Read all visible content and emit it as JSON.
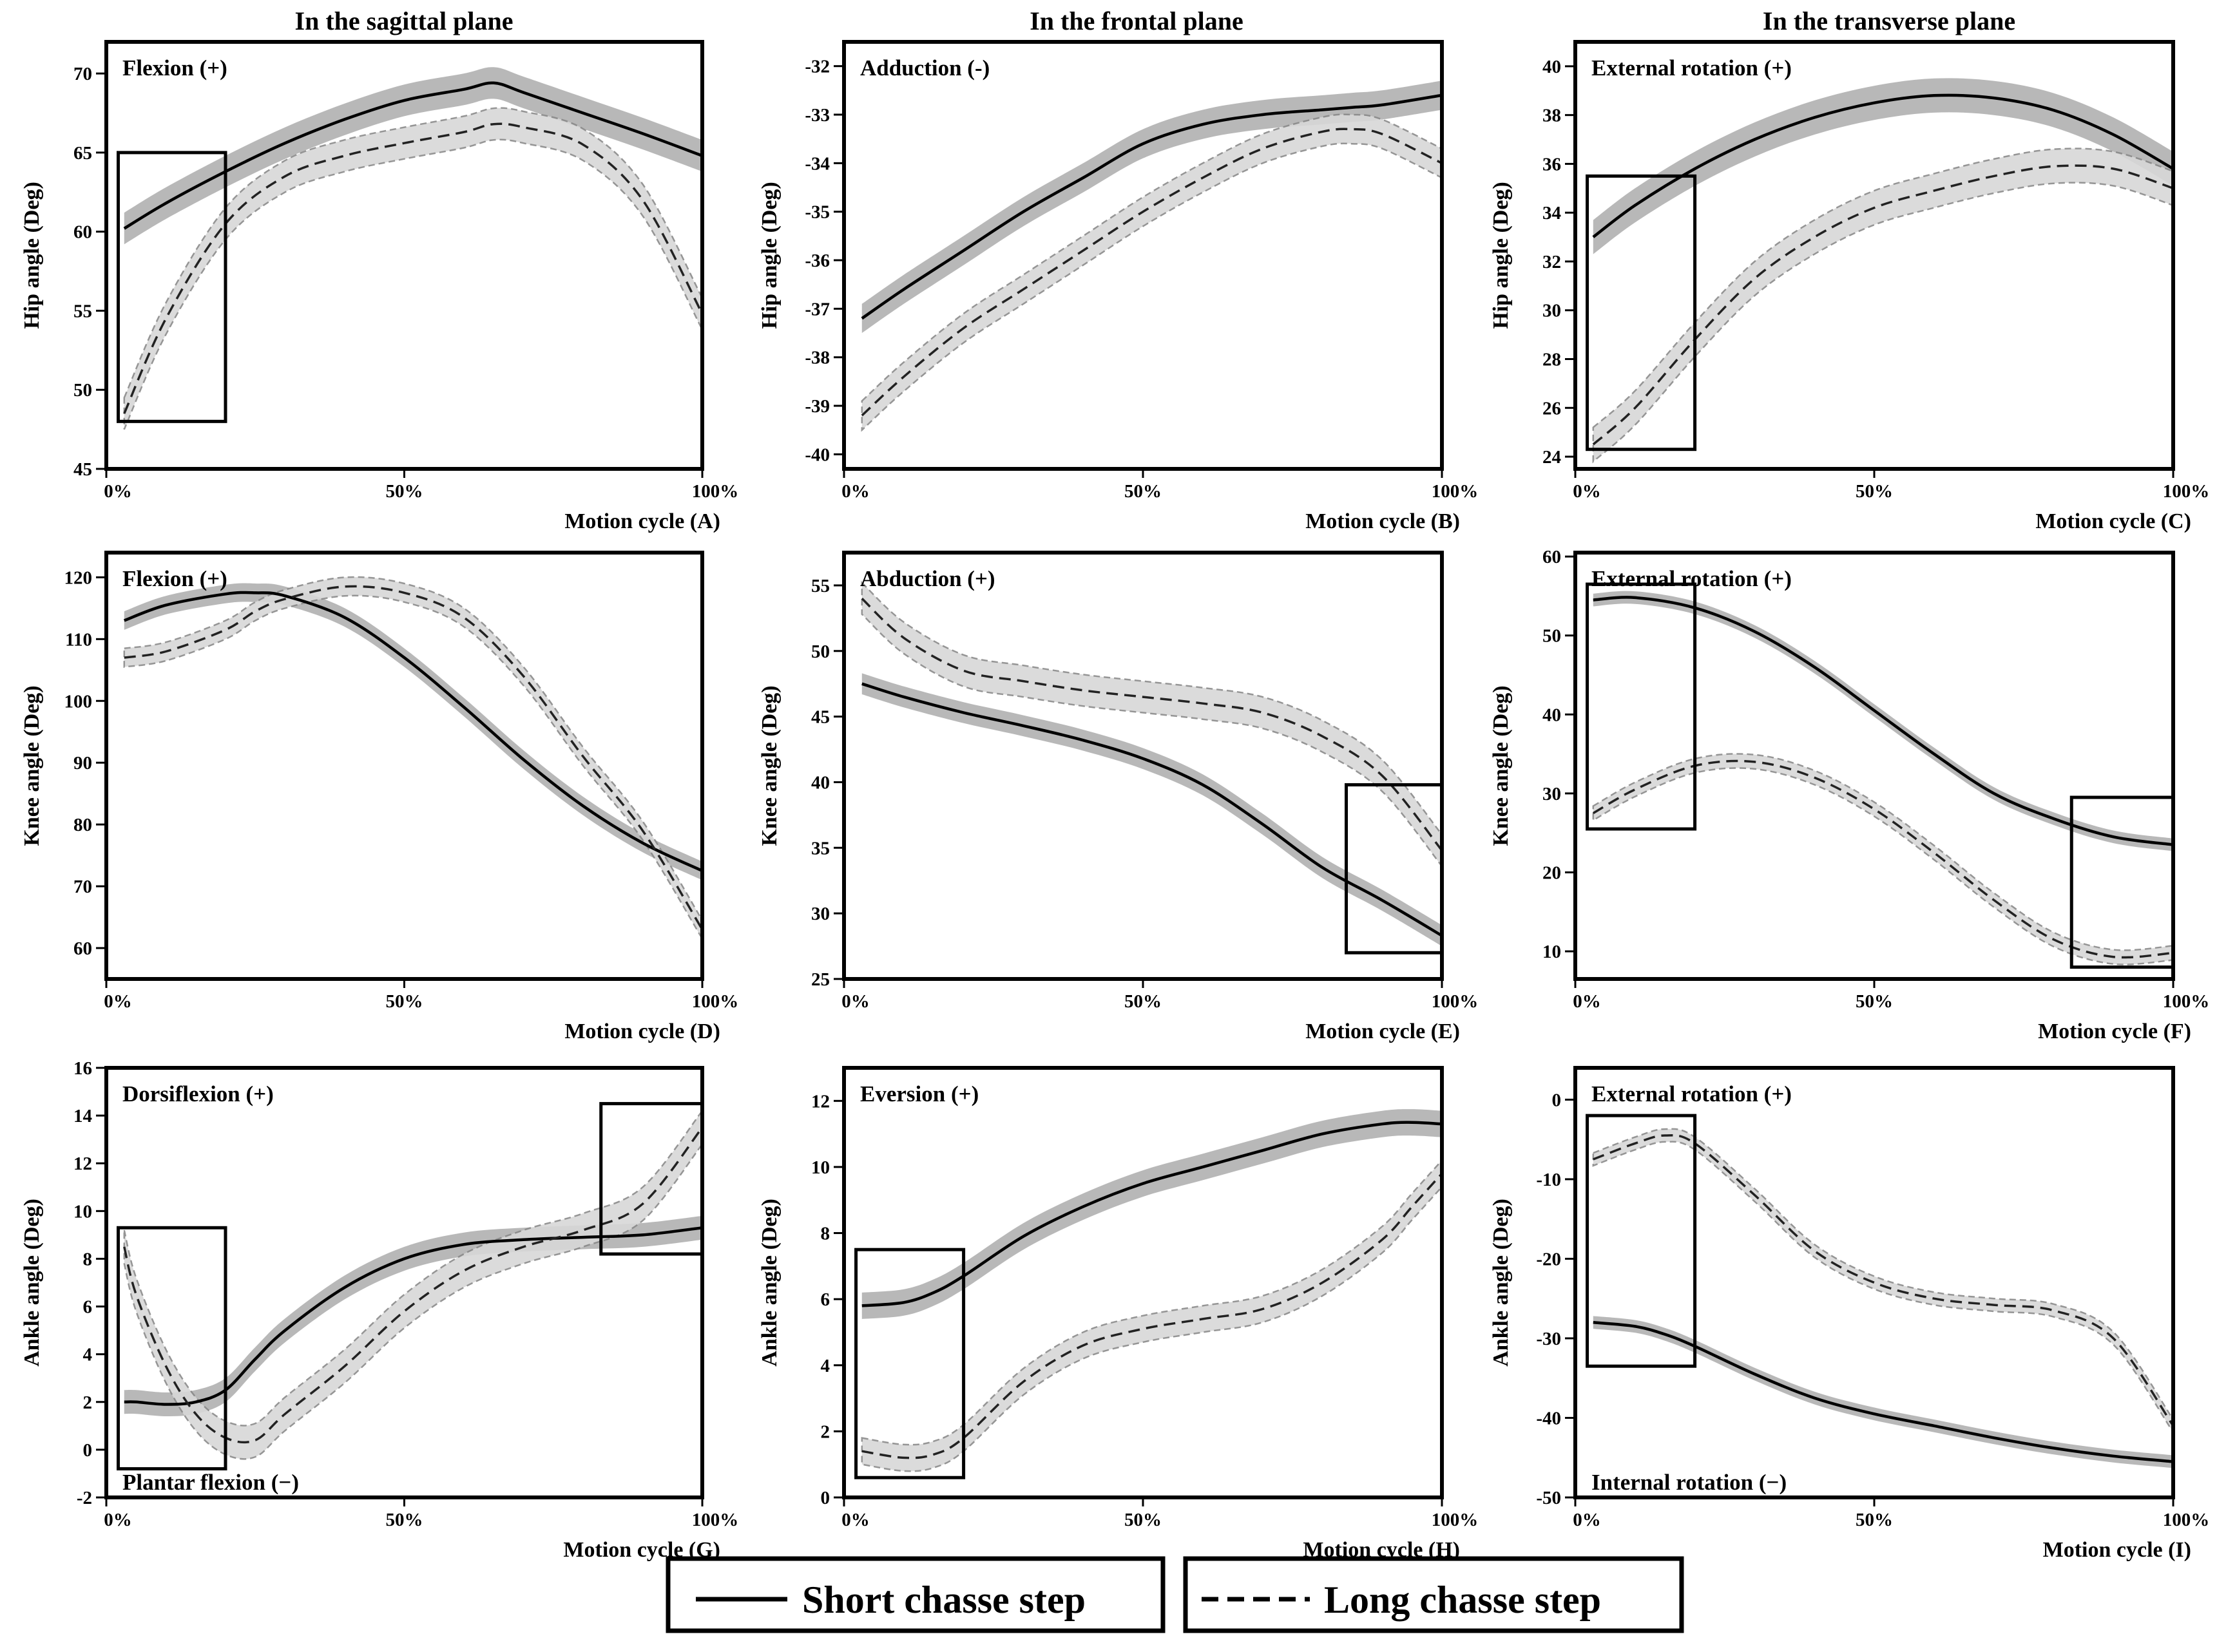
{
  "figure": {
    "column_titles": [
      "In the sagittal plane",
      "In the frontal plane",
      "In the transverse plane"
    ],
    "x_tick_labels": [
      "0%",
      "50%",
      "100%"
    ],
    "legend": {
      "short_label": "Short chasse step",
      "long_label": "Long chasse step"
    }
  },
  "chart_data": [
    {
      "type": "line",
      "xlabel": "Motion cycle (A)",
      "ylabel": "Hip angle (Deg)",
      "annotation_top": "Flexion (+)",
      "annotation_bottom": "",
      "ylim": [
        45,
        72
      ],
      "y_ticks": [
        45,
        50,
        55,
        60,
        65,
        70
      ],
      "x": [
        3,
        10,
        20,
        30,
        40,
        50,
        60,
        65,
        70,
        80,
        90,
        100
      ],
      "series": [
        {
          "name": "Short chasse step",
          "values": [
            60.2,
            61.8,
            63.8,
            65.6,
            67.1,
            68.3,
            69.0,
            69.4,
            68.8,
            67.5,
            66.2,
            64.8
          ],
          "band": 1.0
        },
        {
          "name": "Long chasse step",
          "values": [
            48.5,
            54.5,
            60.5,
            63.5,
            64.8,
            65.6,
            66.3,
            66.8,
            66.6,
            65.5,
            62.0,
            54.8
          ],
          "band": 1.0
        }
      ],
      "highlights": [
        [
          2,
          20,
          48,
          65
        ]
      ]
    },
    {
      "type": "line",
      "xlabel": "Motion cycle (B)",
      "ylabel": "Hip angle (Deg)",
      "annotation_top": "Adduction (-)",
      "annotation_bottom": "",
      "ylim": [
        -40.3,
        -31.5
      ],
      "y_ticks": [
        -40,
        -39,
        -38,
        -37,
        -36,
        -35,
        -34,
        -33,
        -32
      ],
      "x": [
        3,
        10,
        20,
        30,
        40,
        50,
        60,
        70,
        80,
        85,
        90,
        100
      ],
      "series": [
        {
          "name": "Short chasse step",
          "values": [
            -37.2,
            -36.6,
            -35.8,
            -35.0,
            -34.3,
            -33.6,
            -33.2,
            -33.0,
            -32.9,
            -32.85,
            -32.8,
            -32.6
          ],
          "band": 0.3
        },
        {
          "name": "Long chasse step",
          "values": [
            -39.2,
            -38.4,
            -37.4,
            -36.6,
            -35.8,
            -35.0,
            -34.3,
            -33.7,
            -33.35,
            -33.3,
            -33.4,
            -34.0
          ],
          "band": 0.3
        }
      ],
      "highlights": []
    },
    {
      "type": "line",
      "xlabel": "Motion cycle (C)",
      "ylabel": "Hip angle (Deg)",
      "annotation_top": "External rotation (+)",
      "annotation_bottom": "",
      "ylim": [
        23.5,
        41
      ],
      "y_ticks": [
        24,
        26,
        28,
        30,
        32,
        34,
        36,
        38,
        40
      ],
      "x": [
        3,
        10,
        20,
        30,
        40,
        50,
        60,
        70,
        80,
        90,
        100
      ],
      "series": [
        {
          "name": "Short chasse step",
          "values": [
            33.0,
            34.3,
            35.8,
            37.0,
            37.9,
            38.5,
            38.8,
            38.7,
            38.2,
            37.2,
            35.8
          ],
          "band": 0.7
        },
        {
          "name": "Long chasse step",
          "values": [
            24.5,
            26.0,
            28.8,
            31.3,
            33.0,
            34.2,
            34.9,
            35.5,
            35.9,
            35.8,
            35.0
          ],
          "band": 0.7
        }
      ],
      "highlights": [
        [
          2,
          20,
          24.3,
          35.5
        ]
      ]
    },
    {
      "type": "line",
      "xlabel": "Motion cycle (D)",
      "ylabel": "Knee angle (Deg)",
      "annotation_top": "Flexion (+)",
      "annotation_bottom": "",
      "ylim": [
        55,
        124
      ],
      "y_ticks": [
        60,
        70,
        80,
        90,
        100,
        110,
        120
      ],
      "x": [
        3,
        10,
        20,
        25,
        30,
        40,
        50,
        60,
        70,
        80,
        90,
        100
      ],
      "series": [
        {
          "name": "Short chasse step",
          "values": [
            113,
            115.5,
            117.3,
            117.5,
            117.0,
            113.5,
            107,
            99,
            90.5,
            83,
            77,
            72.5
          ],
          "band": 1.5
        },
        {
          "name": "Long chasse step",
          "values": [
            107,
            108,
            111.5,
            114.5,
            116.5,
            118.5,
            117.5,
            113.5,
            104,
            91,
            79,
            63
          ],
          "band": 1.5
        }
      ],
      "highlights": []
    },
    {
      "type": "line",
      "xlabel": "Motion cycle (E)",
      "ylabel": "Knee angle (Deg)",
      "annotation_top": "Abduction (+)",
      "annotation_bottom": "",
      "ylim": [
        25,
        57.5
      ],
      "y_ticks": [
        25,
        30,
        35,
        40,
        45,
        50,
        55
      ],
      "x": [
        3,
        10,
        20,
        30,
        40,
        50,
        60,
        70,
        80,
        90,
        100
      ],
      "series": [
        {
          "name": "Short chasse step",
          "values": [
            47.5,
            46.5,
            45.3,
            44.3,
            43.2,
            41.8,
            39.8,
            36.8,
            33.5,
            31.0,
            28.3
          ],
          "band": 0.8
        },
        {
          "name": "Long chasse step",
          "values": [
            54.0,
            51.0,
            48.5,
            47.7,
            47.0,
            46.5,
            46.0,
            45.3,
            43.5,
            40.5,
            34.8
          ],
          "band": 1.2
        }
      ],
      "highlights": [
        [
          84,
          100,
          27,
          39.8
        ]
      ]
    },
    {
      "type": "line",
      "xlabel": "Motion cycle (F)",
      "ylabel": "Knee angle (Deg)",
      "annotation_top": "External rotation (+)",
      "annotation_bottom": "",
      "ylim": [
        6.5,
        60.5
      ],
      "y_ticks": [
        10,
        20,
        30,
        40,
        50,
        60
      ],
      "x": [
        3,
        10,
        20,
        30,
        40,
        50,
        60,
        70,
        80,
        90,
        100
      ],
      "series": [
        {
          "name": "Short chasse step",
          "values": [
            54.5,
            54.8,
            53.5,
            50.5,
            46.0,
            40.5,
            35.0,
            30.0,
            26.8,
            24.5,
            23.5
          ],
          "band": 0.8
        },
        {
          "name": "Long chasse step",
          "values": [
            27.5,
            30.5,
            33.5,
            34.0,
            32.0,
            28.0,
            22.5,
            16.5,
            11.5,
            9.3,
            9.8
          ],
          "band": 0.9
        }
      ],
      "highlights": [
        [
          2,
          20,
          25.5,
          56.5
        ],
        [
          83,
          100,
          8,
          29.5
        ]
      ]
    },
    {
      "type": "line",
      "xlabel": "Motion cycle (G)",
      "ylabel": "Ankle angle (Deg)",
      "annotation_top": "Dorsiflexion (+)",
      "annotation_bottom": "Plantar flexion (−)",
      "ylim": [
        -2,
        16
      ],
      "y_ticks": [
        -2,
        0,
        2,
        4,
        6,
        8,
        10,
        12,
        14,
        16
      ],
      "x": [
        3,
        5,
        10,
        15,
        20,
        25,
        30,
        40,
        50,
        60,
        70,
        80,
        90,
        100
      ],
      "series": [
        {
          "name": "Short chasse step",
          "values": [
            2.0,
            2.0,
            1.9,
            2.0,
            2.5,
            3.8,
            5.0,
            6.8,
            8.0,
            8.6,
            8.8,
            8.9,
            9.0,
            9.3
          ],
          "band": 0.5
        },
        {
          "name": "Long chasse step",
          "values": [
            8.5,
            6.5,
            3.5,
            1.5,
            0.5,
            0.4,
            1.5,
            3.5,
            5.8,
            7.5,
            8.5,
            9.2,
            10.3,
            13.5
          ],
          "band": 0.7
        }
      ],
      "highlights": [
        [
          2,
          20,
          -0.8,
          9.3
        ],
        [
          83,
          100,
          8.2,
          14.5
        ]
      ]
    },
    {
      "type": "line",
      "xlabel": "Motion cycle (H)",
      "ylabel": "Ankle angle (Deg)",
      "annotation_top": "Eversion (+)",
      "annotation_bottom": "",
      "ylim": [
        0,
        13
      ],
      "y_ticks": [
        0,
        2,
        4,
        6,
        8,
        10,
        12
      ],
      "x": [
        3,
        10,
        15,
        20,
        30,
        40,
        50,
        60,
        70,
        80,
        90,
        95,
        100
      ],
      "series": [
        {
          "name": "Short chasse step",
          "values": [
            5.8,
            5.9,
            6.2,
            6.7,
            7.9,
            8.8,
            9.5,
            10.0,
            10.5,
            11.0,
            11.3,
            11.35,
            11.3
          ],
          "band": 0.4
        },
        {
          "name": "Long chasse step",
          "values": [
            1.4,
            1.2,
            1.3,
            1.8,
            3.5,
            4.6,
            5.1,
            5.4,
            5.7,
            6.5,
            7.8,
            8.8,
            9.8
          ],
          "band": 0.4
        }
      ],
      "highlights": [
        [
          2,
          20,
          0.6,
          7.5
        ]
      ]
    },
    {
      "type": "line",
      "xlabel": "Motion cycle (I)",
      "ylabel": "Ankle angle (Deg)",
      "annotation_top": "External rotation (+)",
      "annotation_bottom": "Internal rotation (−)",
      "ylim": [
        -50,
        4
      ],
      "y_ticks": [
        -50,
        -40,
        -30,
        -20,
        -10,
        0
      ],
      "x": [
        3,
        10,
        15,
        20,
        30,
        40,
        50,
        60,
        70,
        80,
        90,
        100
      ],
      "series": [
        {
          "name": "Short chasse step",
          "values": [
            -28.0,
            -28.5,
            -29.5,
            -31.0,
            -34.5,
            -37.5,
            -39.5,
            -41.0,
            -42.5,
            -43.8,
            -44.8,
            -45.5
          ],
          "band": 0.8
        },
        {
          "name": "Long chasse step",
          "values": [
            -7.5,
            -5.5,
            -4.5,
            -5.5,
            -12.0,
            -19.0,
            -23.0,
            -25.0,
            -25.8,
            -26.5,
            -30.0,
            -41.0
          ],
          "band": 0.8
        }
      ],
      "highlights": [
        [
          2,
          20,
          -33.5,
          -2
        ]
      ]
    }
  ]
}
